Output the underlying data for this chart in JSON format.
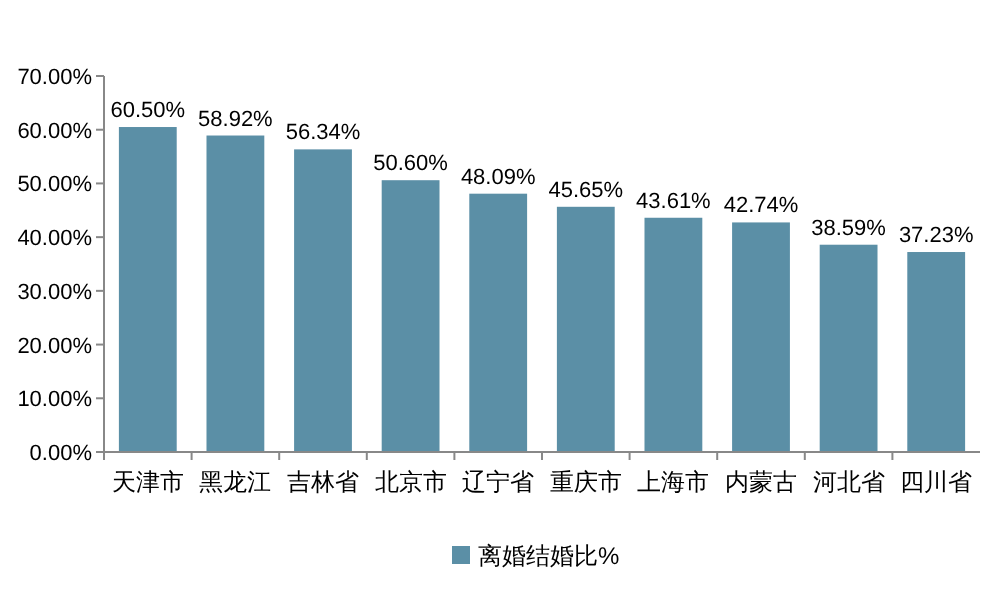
{
  "chart_data": {
    "type": "bar",
    "categories": [
      "天津市",
      "黑龙江",
      "吉林省",
      "北京市",
      "辽宁省",
      "重庆市",
      "上海市",
      "内蒙古",
      "河北省",
      "四川省"
    ],
    "series": [
      {
        "name": "离婚结婚比%",
        "color": "#5b8fa6",
        "values": [
          60.5,
          58.92,
          56.34,
          50.6,
          48.09,
          45.65,
          43.61,
          42.74,
          38.59,
          37.23
        ],
        "value_labels": [
          "60.50%",
          "58.92%",
          "56.34%",
          "50.60%",
          "48.09%",
          "45.65%",
          "43.61%",
          "42.74%",
          "38.59%",
          "37.23%"
        ]
      }
    ],
    "ylim": [
      0,
      70
    ],
    "yticks": [
      {
        "value": 0,
        "label": "0.00%"
      },
      {
        "value": 10,
        "label": "10.00%"
      },
      {
        "value": 20,
        "label": "20.00%"
      },
      {
        "value": 30,
        "label": "30.00%"
      },
      {
        "value": 40,
        "label": "40.00%"
      },
      {
        "value": 50,
        "label": "50.00%"
      },
      {
        "value": 60,
        "label": "60.00%"
      },
      {
        "value": 70,
        "label": "70.00%"
      }
    ],
    "legend": "bottom"
  }
}
